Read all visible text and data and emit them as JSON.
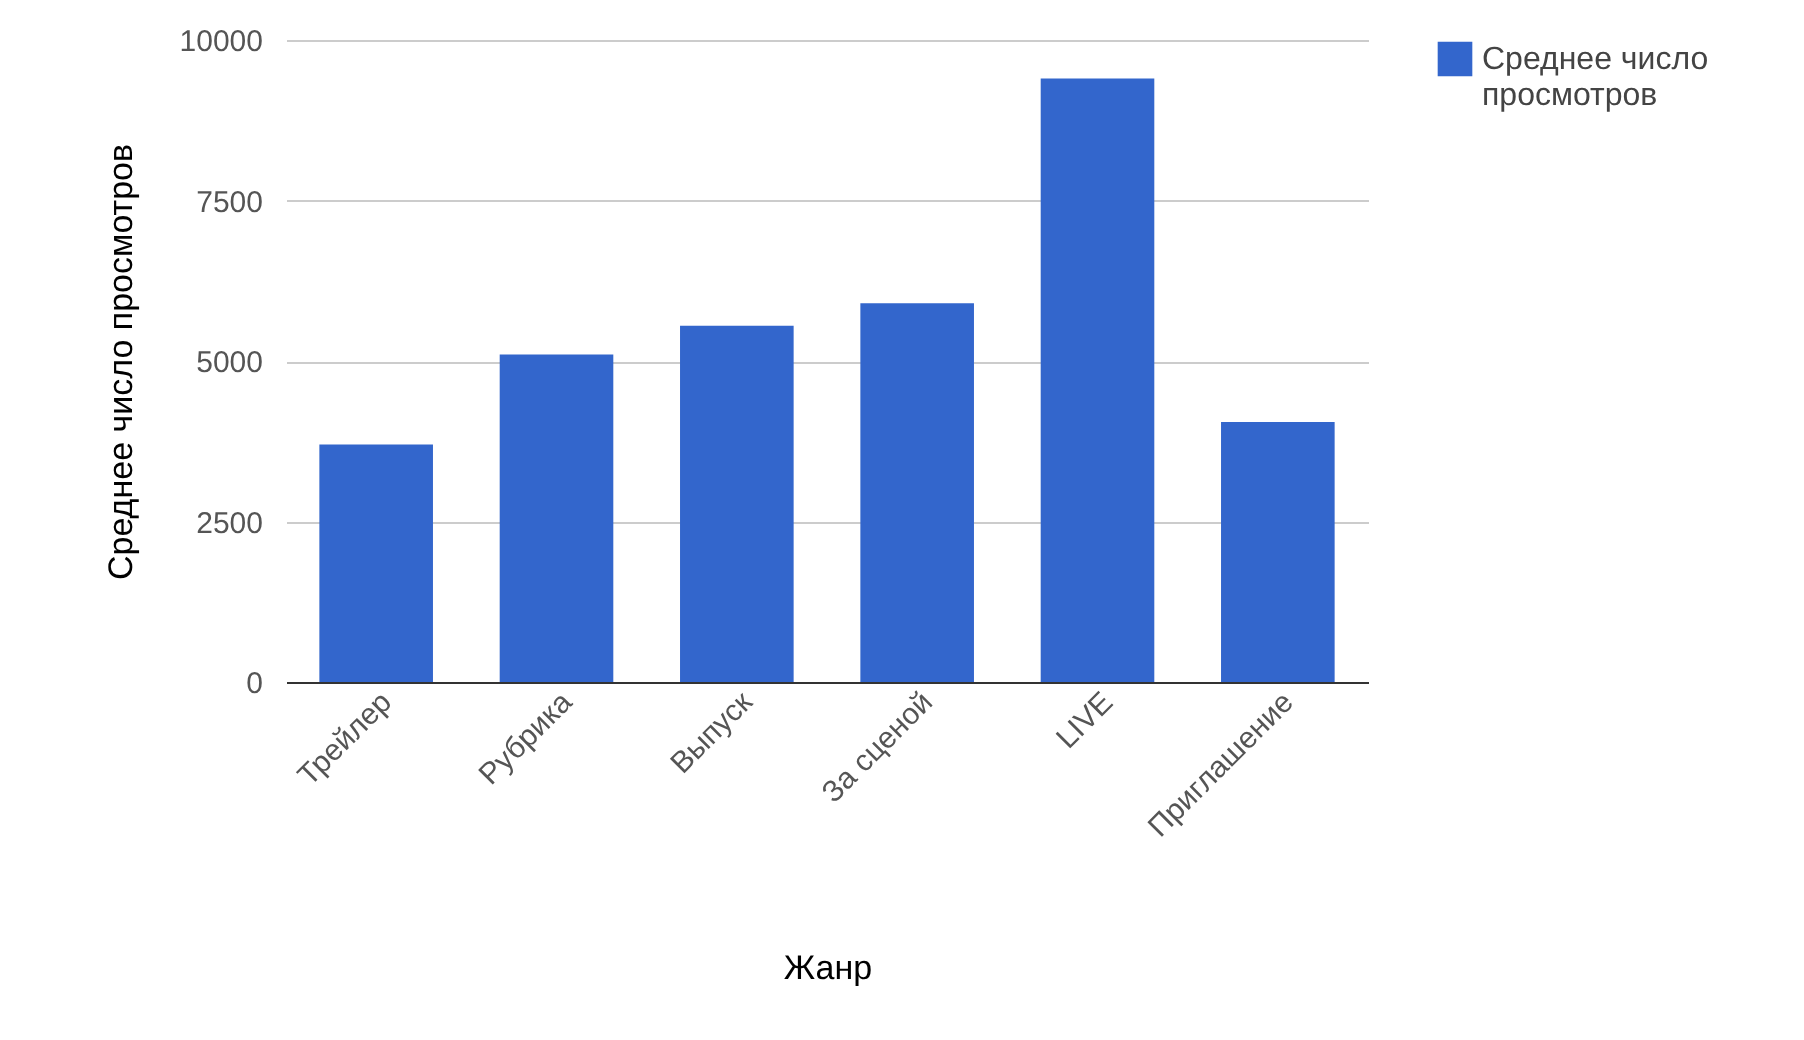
{
  "chart_data": {
    "type": "bar",
    "xlabel": "Жанр",
    "ylabel": "Среднее число просмотров",
    "categories": [
      "Трейлер",
      "Рубрика",
      "Выпуск",
      "За сценой",
      "LIVE",
      "Приглашение"
    ],
    "series": [
      {
        "name": "Среднее число просмотров",
        "color": "#3366cc",
        "values": [
          3700,
          5100,
          5550,
          5900,
          9400,
          4050
        ]
      }
    ],
    "ylim": [
      0,
      10000
    ],
    "yticks": [
      0,
      2500,
      5000,
      7500,
      10000
    ],
    "grid": "y",
    "legend": "top right"
  }
}
